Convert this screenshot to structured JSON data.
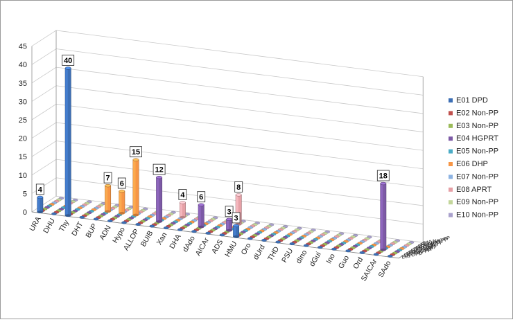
{
  "chart_data": {
    "type": "bar",
    "variant": "3d-column",
    "title": "",
    "xlabel": "",
    "ylabel": "",
    "ylim": [
      0,
      45
    ],
    "yticks": [
      0,
      5,
      10,
      15,
      20,
      25,
      30,
      35,
      40,
      45
    ],
    "grid": true,
    "legend_position": "right",
    "categories": [
      "URA",
      "DHU",
      "Thy",
      "DHT",
      "BUP",
      "ADN",
      "Hypo",
      "ALLOP",
      "BUIB",
      "Xan",
      "DHA",
      "dAdo",
      "AICAr",
      "ADS",
      "HMU",
      "Oro",
      "dUrd",
      "THD",
      "PSU",
      "dIno",
      "dGui",
      "Ino",
      "Guo",
      "Ord",
      "SAICAr",
      "SAdo"
    ],
    "series": [
      {
        "name": "E01 DPD",
        "color": "#3d6fb5",
        "values": [
          4,
          0,
          40,
          0,
          0,
          0,
          0,
          0,
          0,
          0,
          0,
          0,
          0,
          0,
          3,
          0,
          0,
          0,
          0,
          0,
          0,
          0,
          0,
          0,
          0,
          0
        ]
      },
      {
        "name": "E02 Non-PP",
        "color": "#c0504d",
        "values": [
          0,
          0,
          0,
          0,
          0,
          0,
          0,
          0,
          0,
          0,
          0,
          0,
          0,
          0,
          0,
          0,
          0,
          0,
          0,
          0,
          0,
          0,
          0,
          0,
          0,
          0
        ]
      },
      {
        "name": "E03 Non-PP",
        "color": "#9bbb59",
        "values": [
          0,
          0,
          0,
          0,
          0,
          0,
          0,
          0,
          0,
          0,
          0,
          0,
          0,
          0,
          0,
          0,
          0,
          0,
          0,
          0,
          0,
          0,
          0,
          0,
          0,
          0
        ]
      },
      {
        "name": "E04 HGPRT",
        "color": "#7d5aa6",
        "values": [
          0,
          0,
          0,
          0,
          0,
          0,
          0,
          0,
          12,
          0,
          0,
          6,
          0,
          3,
          0,
          0,
          0,
          0,
          0,
          0,
          0,
          0,
          0,
          0,
          18,
          0
        ]
      },
      {
        "name": "E05 Non-PP",
        "color": "#4bacc6",
        "values": [
          0,
          0,
          0,
          0,
          0,
          0,
          0,
          0,
          0,
          0,
          0,
          0,
          0,
          0,
          0,
          0,
          0,
          0,
          0,
          0,
          0,
          0,
          0,
          0,
          0,
          0
        ]
      },
      {
        "name": "E06 DHP",
        "color": "#f79646",
        "values": [
          0,
          0,
          0,
          0,
          7,
          6,
          15,
          0,
          0,
          0,
          0,
          0,
          0,
          0,
          0,
          0,
          0,
          0,
          0,
          0,
          0,
          0,
          0,
          0,
          0,
          0
        ]
      },
      {
        "name": "E07 Non-PP",
        "color": "#8db3e2",
        "values": [
          0,
          0,
          0,
          0,
          0,
          0,
          0,
          0,
          0,
          0,
          0,
          0,
          0,
          0,
          0,
          0,
          0,
          0,
          0,
          0,
          0,
          0,
          0,
          0,
          0,
          0
        ]
      },
      {
        "name": "E08 APRT",
        "color": "#e6a0a6",
        "values": [
          0,
          0,
          0,
          0,
          0,
          0,
          0,
          0,
          0,
          4,
          0,
          0,
          0,
          8,
          0,
          0,
          0,
          0,
          0,
          0,
          0,
          0,
          0,
          0,
          0,
          0
        ]
      },
      {
        "name": "E09 Non-PP",
        "color": "#c3d69b",
        "values": [
          0,
          0,
          0,
          0,
          0,
          0,
          0,
          0,
          0,
          0,
          0,
          0,
          0,
          0,
          0,
          0,
          0,
          0,
          0,
          0,
          0,
          0,
          0,
          0,
          0,
          0
        ]
      },
      {
        "name": "E10 Non-PP",
        "color": "#a9a1cc",
        "values": [
          0,
          0,
          0,
          0,
          0,
          0,
          0,
          0,
          0,
          0,
          0,
          0,
          0,
          0,
          0,
          0,
          0,
          0,
          0,
          0,
          0,
          0,
          0,
          0,
          0,
          0
        ]
      }
    ],
    "data_labels": [
      {
        "series": "E01 DPD",
        "category": "URA",
        "text": "4"
      },
      {
        "series": "E01 DPD",
        "category": "Thy",
        "text": "40"
      },
      {
        "series": "E06 DHP",
        "category": "BUP",
        "text": "7"
      },
      {
        "series": "E06 DHP",
        "category": "ADN",
        "text": "6"
      },
      {
        "series": "E06 DHP",
        "category": "Hypo",
        "text": "15"
      },
      {
        "series": "E04 HGPRT",
        "category": "BUIB",
        "text": "12"
      },
      {
        "series": "E08 APRT",
        "category": "Xan",
        "text": "4"
      },
      {
        "series": "E04 HGPRT",
        "category": "dAdo",
        "text": "6"
      },
      {
        "series": "E04 HGPRT",
        "category": "ADS",
        "text": "3"
      },
      {
        "series": "E01 DPD",
        "category": "HMU",
        "text": "3"
      },
      {
        "series": "E08 APRT",
        "category": "ADS",
        "text": "8"
      },
      {
        "series": "E04 HGPRT",
        "category": "SAICAr",
        "text": "18"
      }
    ]
  }
}
